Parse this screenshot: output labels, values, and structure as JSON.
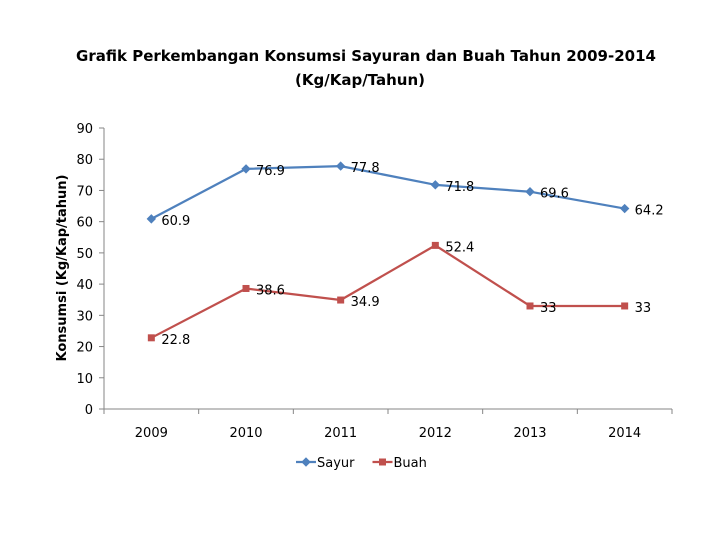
{
  "chart_data": {
    "type": "line",
    "title_lines": [
      "Grafik Perkembangan Konsumsi Sayuran dan Buah Tahun 2009-2014",
      "(Kg/Kap/Tahun)"
    ],
    "xlabel": "",
    "ylabel": "Konsumsi (Kg/Kap/tahun)",
    "ylim": [
      0,
      90
    ],
    "yticks": [
      0,
      10,
      20,
      30,
      40,
      50,
      60,
      70,
      80,
      90
    ],
    "categories": [
      "2009",
      "2010",
      "2011",
      "2012",
      "2013",
      "2014"
    ],
    "grid": false,
    "legend_position": "bottom",
    "series": [
      {
        "name": "Sayur",
        "color": "#4F81BD",
        "marker": "diamond",
        "values": [
          60.9,
          76.9,
          77.8,
          71.8,
          69.6,
          64.2
        ],
        "labels": [
          "60.9",
          "76.9",
          "77.8",
          "71.8",
          "69.6",
          "64.2"
        ]
      },
      {
        "name": "Buah",
        "color": "#C0504D",
        "marker": "square",
        "values": [
          22.8,
          38.6,
          34.9,
          52.4,
          33,
          33
        ],
        "labels": [
          "22.8",
          "38.6",
          "34.9",
          "52.4",
          "33",
          "33"
        ]
      }
    ]
  }
}
